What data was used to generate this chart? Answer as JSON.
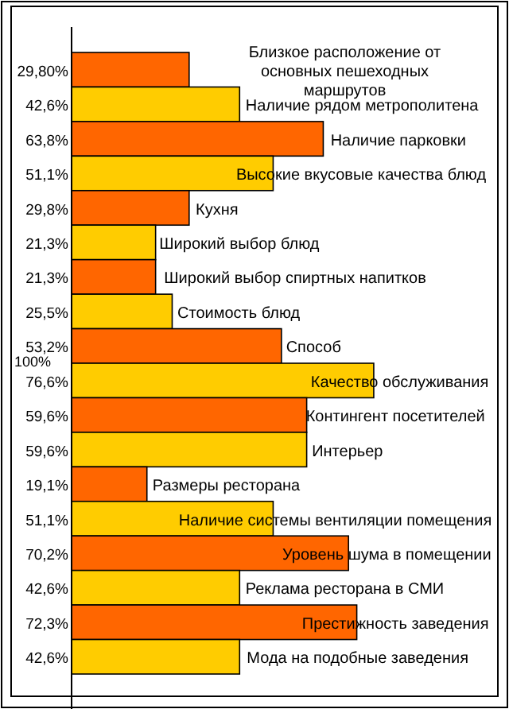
{
  "chart_data": {
    "type": "bar",
    "orientation": "horizontal",
    "categories": [
      "Близкое расположение от основных пешеходных маршрутов",
      "Наличие рядом метрополитена",
      "Наличие парковки",
      "Высокие вкусовые качества блюд",
      "Кухня",
      "Широкий выбор блюд",
      "Широкий выбор спиртных напитков",
      "Стоимость блюд",
      "Способ",
      "Качество обслуживания",
      "Контингент посетителей",
      "Интерьер",
      "Размеры ресторана",
      "Наличие системы вентиляции помещения",
      "Уровень шума в помещении",
      "Реклама ресторана в СМИ",
      "Престижность заведения",
      "Мода на подобные заведения"
    ],
    "values": [
      29.8,
      42.6,
      63.8,
      51.1,
      29.8,
      21.3,
      21.3,
      25.5,
      53.2,
      76.6,
      59.6,
      59.6,
      19.1,
      51.1,
      70.2,
      42.6,
      72.3,
      42.6
    ],
    "value_labels": [
      "29,80%",
      "42,6%",
      "63,8%",
      "51,1%",
      "29,8%",
      "21,3%",
      "21,3%",
      "25,5%",
      "53,2%",
      "76,6%",
      "59,6%",
      "59,6%",
      "19,1%",
      "51,1%",
      "70,2%",
      "42,6%",
      "72,3%",
      "42,6%"
    ],
    "colors": [
      "#ff6600",
      "#ffcc00",
      "#ff6600",
      "#ffcc00",
      "#ff6600",
      "#ffcc00",
      "#ff6600",
      "#ffcc00",
      "#ff6600",
      "#ffcc00",
      "#ff6600",
      "#ffcc00",
      "#ff6600",
      "#ffcc00",
      "#ff6600",
      "#ffcc00",
      "#ff6600",
      "#ffcc00"
    ],
    "annotations": [
      "100%"
    ]
  }
}
